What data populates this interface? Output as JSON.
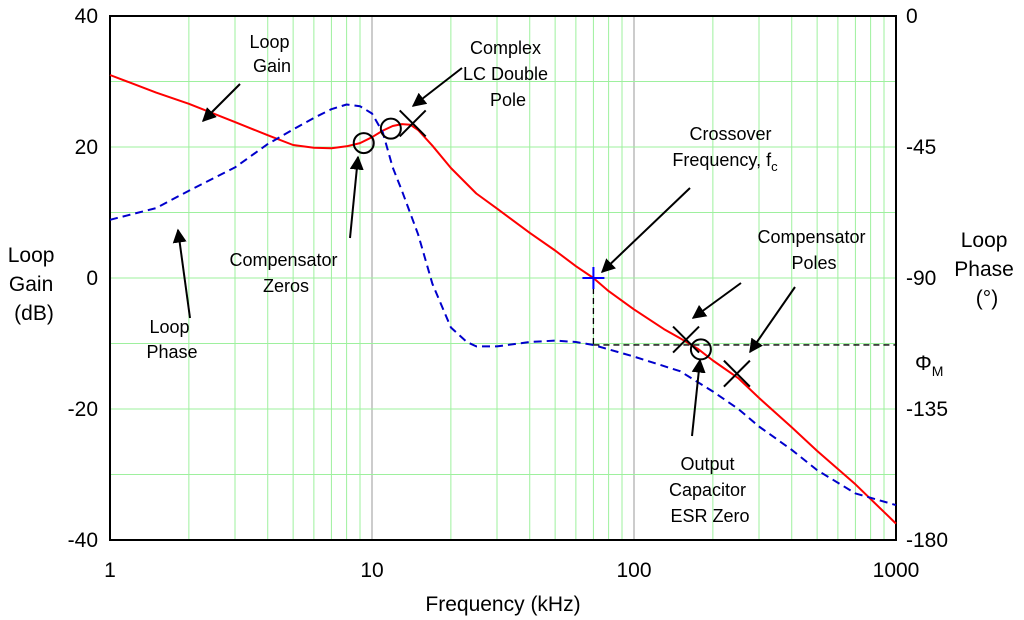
{
  "chart_data": {
    "type": "line",
    "xlabel": "Frequency (kHz)",
    "x_scale": "log",
    "xlim": [
      1,
      1000
    ],
    "x_ticks": [
      "1",
      "10",
      "100",
      "1000"
    ],
    "ylabel_left": [
      "Loop",
      "Gain",
      "(dB)"
    ],
    "ylim_left": [
      -40,
      40
    ],
    "y_ticks_left": [
      "40",
      "20",
      "0",
      "-20",
      "-40"
    ],
    "ylabel_right": [
      "Loop",
      "Phase",
      "(°)"
    ],
    "ylim_right": [
      -180,
      0
    ],
    "y_ticks_right": [
      "0",
      "-45",
      "-90",
      "-135",
      "-180"
    ],
    "grid": true,
    "series": [
      {
        "name": "Loop Gain",
        "color": "#ff0000",
        "style": "solid",
        "axis": "left",
        "points": [
          [
            1,
            31
          ],
          [
            1.5,
            28.3
          ],
          [
            2,
            26.6
          ],
          [
            3,
            23.8
          ],
          [
            4,
            21.8
          ],
          [
            5,
            20.3
          ],
          [
            6,
            19.9
          ],
          [
            7,
            19.8
          ],
          [
            8,
            20.1
          ],
          [
            9,
            20.6
          ],
          [
            10,
            21.5
          ],
          [
            11,
            22.5
          ],
          [
            12,
            23.2
          ],
          [
            13,
            23.5
          ],
          [
            14,
            23.4
          ],
          [
            15,
            22.6
          ],
          [
            17,
            20.2
          ],
          [
            20,
            16.8
          ],
          [
            25,
            12.9
          ],
          [
            30,
            10.6
          ],
          [
            40,
            6.9
          ],
          [
            50,
            4.2
          ],
          [
            60,
            1.8
          ],
          [
            70,
            0
          ],
          [
            80,
            -2
          ],
          [
            100,
            -4.8
          ],
          [
            130,
            -7.8
          ],
          [
            150,
            -9.2
          ],
          [
            175,
            -10.8
          ],
          [
            200,
            -12.6
          ],
          [
            250,
            -15.3
          ],
          [
            300,
            -18.3
          ],
          [
            400,
            -22.8
          ],
          [
            500,
            -26.4
          ],
          [
            700,
            -31.5
          ],
          [
            1000,
            -37.5
          ]
        ]
      },
      {
        "name": "Loop Phase",
        "color": "#0000cc",
        "style": "dashed",
        "axis": "right",
        "points": [
          [
            1,
            -70
          ],
          [
            1.5,
            -66
          ],
          [
            2,
            -60
          ],
          [
            3,
            -52
          ],
          [
            4,
            -44
          ],
          [
            5,
            -39
          ],
          [
            6,
            -35
          ],
          [
            7,
            -32
          ],
          [
            8,
            -30.4
          ],
          [
            9,
            -31
          ],
          [
            10,
            -33.5
          ],
          [
            11,
            -40
          ],
          [
            12,
            -52
          ],
          [
            13,
            -60
          ],
          [
            15,
            -75
          ],
          [
            17,
            -92
          ],
          [
            20,
            -107
          ],
          [
            23,
            -112
          ],
          [
            25,
            -113.5
          ],
          [
            30,
            -113.5
          ],
          [
            40,
            -112
          ],
          [
            50,
            -111.5
          ],
          [
            60,
            -112
          ],
          [
            70,
            -113
          ],
          [
            100,
            -117
          ],
          [
            150,
            -122
          ],
          [
            200,
            -129
          ],
          [
            250,
            -135
          ],
          [
            300,
            -141
          ],
          [
            400,
            -149
          ],
          [
            500,
            -156
          ],
          [
            700,
            -164
          ],
          [
            1000,
            -168
          ]
        ]
      }
    ],
    "markers": [
      {
        "shape": "circle",
        "x": 9.3,
        "y": 20.6
      },
      {
        "shape": "circle",
        "x": 11.8,
        "y": 22.8
      },
      {
        "shape": "x",
        "x": 14.3,
        "y": 23.6
      },
      {
        "shape": "x",
        "x": 158,
        "y": -9.4
      },
      {
        "shape": "circle",
        "x": 180,
        "y": -10.9
      },
      {
        "shape": "x",
        "x": 247,
        "y": -14.6
      },
      {
        "shape": "plus",
        "x": 70,
        "y": 0,
        "color": "#0000ff"
      }
    ],
    "phase_margin": {
      "label": "Φ",
      "subscript": "M",
      "crossover_x": 70,
      "gain_db": 0,
      "phase_deg": -113,
      "x_end": 1000
    },
    "annotations": [
      {
        "lines": [
          "Loop",
          "Gain"
        ],
        "color": "#ff0000"
      },
      {
        "lines": [
          "Loop",
          "Phase"
        ],
        "color": "#0000cc"
      },
      {
        "lines": [
          "Complex",
          "LC Double",
          "Pole"
        ],
        "color": "#000000"
      },
      {
        "lines": [
          "Compensator",
          "Zeros"
        ],
        "color": "#000000"
      },
      {
        "lines": [
          "Crossover",
          "Frequency, f"
        ],
        "subscript": "c",
        "color": "#000000"
      },
      {
        "lines": [
          "Compensator",
          "Poles"
        ],
        "color": "#000000"
      },
      {
        "lines": [
          "Output",
          "Capacitor",
          "ESR Zero"
        ],
        "color": "#000000"
      }
    ]
  }
}
